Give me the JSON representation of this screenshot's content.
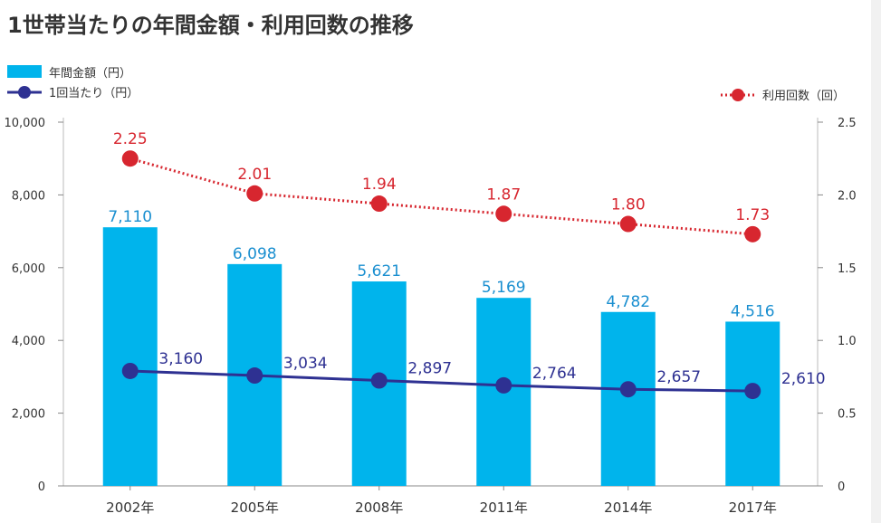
{
  "chart_data": {
    "type": "bar",
    "title": "1世帯当たりの年間金額・利用回数の推移",
    "categories": [
      "2002年",
      "2005年",
      "2008年",
      "2011年",
      "2014年",
      "2017年"
    ],
    "series": [
      {
        "name": "年間金額（円）",
        "type": "bar",
        "axis": "left",
        "values": [
          7110,
          6098,
          5621,
          5169,
          4782,
          4516
        ]
      },
      {
        "name": "1回当たり（円）",
        "type": "line",
        "axis": "left",
        "values": [
          3160,
          3034,
          2897,
          2764,
          2657,
          2610
        ]
      },
      {
        "name": "利用回数（回）",
        "type": "line-dotted",
        "axis": "right",
        "values": [
          2.25,
          2.01,
          1.94,
          1.87,
          1.8,
          1.73
        ]
      }
    ],
    "data_labels": {
      "bar": [
        "7,110",
        "6,098",
        "5,621",
        "5,169",
        "4,782",
        "4,516"
      ],
      "per_use": [
        "3,160",
        "3,034",
        "2,897",
        "2,764",
        "2,657",
        "2,610"
      ],
      "count": [
        "2.25",
        "2.01",
        "1.94",
        "1.87",
        "1.80",
        "1.73"
      ]
    },
    "left_axis": {
      "ylim": [
        0,
        10000
      ],
      "ticks": [
        0,
        2000,
        4000,
        6000,
        8000,
        10000
      ],
      "tick_labels": [
        "0",
        "2,000",
        "4,000",
        "6,000",
        "8,000",
        "10,000"
      ]
    },
    "right_axis": {
      "ylim": [
        0,
        2.5
      ],
      "ticks": [
        0,
        0.5,
        1.0,
        1.5,
        2.0,
        2.5
      ],
      "tick_labels": [
        "0",
        "0.5",
        "1.0",
        "1.5",
        "2.0",
        "2.5"
      ]
    },
    "grid": false,
    "legend": {
      "left": [
        "年間金額（円）",
        "1回当たり（円）"
      ],
      "right": [
        "利用回数（回）"
      ]
    },
    "colors": {
      "bar": "#00b4ec",
      "per_use": "#2e3192",
      "count": "#d7262f",
      "bar_label": "#1a8fd0"
    }
  }
}
